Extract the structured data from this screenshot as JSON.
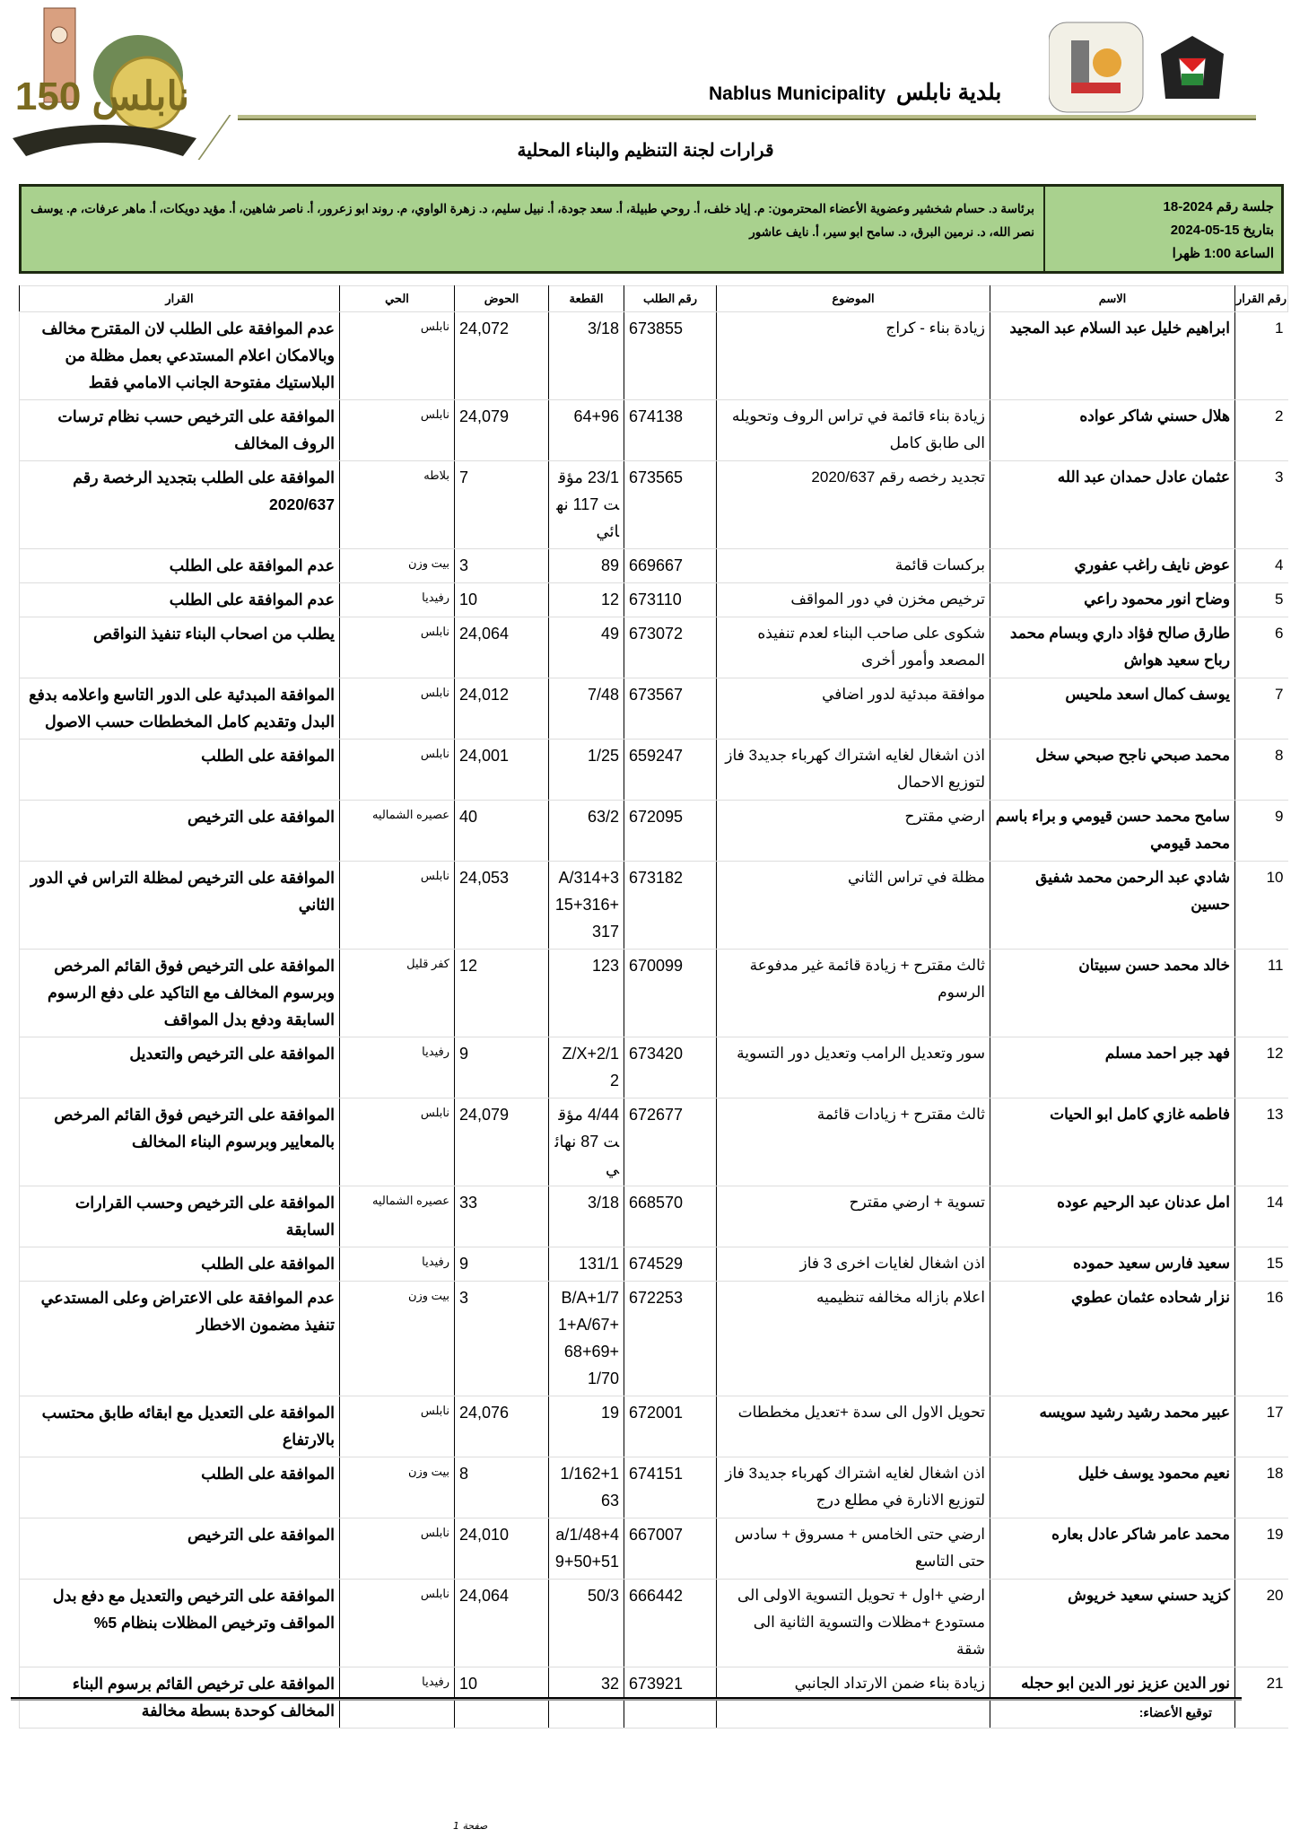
{
  "header": {
    "brand_ar": "بلدية نابلس",
    "brand_en": "Nablus Municipality",
    "left_logo_text": "150 نابلس",
    "title": "قرارات لجنة التنظيم والبناء المحلية"
  },
  "session": {
    "number": "جلسة رقم 2024-18",
    "date": "بتاريخ 15-05-2024",
    "time": "الساعة 1:00 ظهرا",
    "members": "برئاسة د. حسام شخشير وعضوية الأعضاء المحترمون: م. إياد خلف، أ. روحي طبيلة، أ. سعد جودة، أ. نبيل سليم، د. زهرة الواوي، م. روند ابو زعرور، أ. ناصر شاهين، أ. مؤيد دويكات، أ. ماهر عرفات، م. يوسف نصر الله، د. نرمين البرق، د. سامح ابو سير، أ. نايف عاشور"
  },
  "table": {
    "headers": [
      "رقم القرار",
      "الاسم",
      "الموضوع",
      "رقم الطلب",
      "القطعة",
      "الحوض",
      "الحي",
      "القرار"
    ],
    "rows": [
      [
        "1",
        "ابراهيم خليل عبد السلام عبد المجيد",
        "زيادة بناء - كراج",
        "673855",
        "3/18",
        "24,072",
        "نابلس",
        "عدم الموافقة على الطلب لان المقترح مخالف وبالامكان اعلام المستدعي بعمل مظلة من البلاستيك مفتوحة الجانب الامامي فقط"
      ],
      [
        "2",
        "هلال حسني شاكر عواده",
        "زيادة بناء قائمة في تراس الروف وتحويله الى طابق كامل",
        "674138",
        "64+96",
        "24,079",
        "نابلس",
        "الموافقة على الترخيص حسب نظام ترسات الروف المخالف"
      ],
      [
        "3",
        "عثمان عادل حمدان عبد الله",
        "تجديد رخصه رقم 2020/637",
        "673565",
        "23/1 مؤقت 117 نهائي",
        "7",
        "بلاطه",
        "الموافقة على الطلب بتجديد الرخصة رقم 2020/637"
      ],
      [
        "4",
        "عوض نايف راغب عفوري",
        "بركسات قائمة",
        "669667",
        "89",
        "3",
        "بيت وزن",
        "عدم الموافقة على الطلب"
      ],
      [
        "5",
        "وضاح انور محمود راعي",
        "ترخيص مخزن في دور المواقف",
        "673110",
        "12",
        "10",
        "رفيديا",
        "عدم الموافقة على الطلب"
      ],
      [
        "6",
        "طارق صالح فؤاد داري وبسام محمد رباح سعيد هواش",
        "شكوى على صاحب البناء لعدم تنفيذه المصعد وأمور أخرى",
        "673072",
        "49",
        "24,064",
        "نابلس",
        "يطلب من اصحاب البناء تنفيذ النواقص"
      ],
      [
        "7",
        "يوسف كمال اسعد ملحيس",
        "موافقة مبدئية لدور اضافي",
        "673567",
        "7/48",
        "24,012",
        "نابلس",
        "الموافقة المبدئية على الدور التاسع واعلامه بدفع البدل وتقديم كامل المخططات حسب الاصول"
      ],
      [
        "8",
        "محمد صبحي ناجح صبحي سخل",
        "اذن اشغال لغايه اشتراك كهرباء جديد3 فاز لتوزيع الاحمال",
        "659247",
        "1/25",
        "24,001",
        "نابلس",
        "الموافقة على الطلب"
      ],
      [
        "9",
        "سامح محمد حسن قيومي و براء باسم محمد قيومي",
        "ارضي مقترح",
        "672095",
        "63/2",
        "40",
        "عصيره الشماليه",
        "الموافقة على الترخيص"
      ],
      [
        "10",
        "شادي عبد الرحمن محمد شفيق حسين",
        "مظلة في تراس الثاني",
        "673182",
        "A/314+315+316+317",
        "24,053",
        "نابلس",
        "الموافقة على الترخيص لمظلة التراس في الدور الثاني"
      ],
      [
        "11",
        "خالد محمد حسن سبيتان",
        "ثالث مقترح + زيادة قائمة غير مدفوعة الرسوم",
        "670099",
        "123",
        "12",
        "كفر قليل",
        "الموافقة على الترخيص فوق القائم المرخص وبرسوم المخالف مع التاكيد على دفع الرسوم السابقة ودفع بدل المواقف"
      ],
      [
        "12",
        "فهد جبر احمد مسلم",
        "سور وتعديل الرامب وتعديل دور التسوية",
        "673420",
        "Z/X+2/12",
        "9",
        "رفيديا",
        "الموافقة على الترخيص والتعديل"
      ],
      [
        "13",
        "فاطمه غازي كامل ابو الحيات",
        "ثالث مقترح + زيادات قائمة",
        "672677",
        "4/44 مؤقت 87 نهائي",
        "24,079",
        "نابلس",
        "الموافقة على الترخيص فوق القائم المرخص بالمعايير وبرسوم البناء المخالف"
      ],
      [
        "14",
        "امل عدنان عبد الرحيم عوده",
        "تسوية + ارضي مقترح",
        "668570",
        "3/18",
        "33",
        "عصيره الشماليه",
        "الموافقة على الترخيص وحسب القرارات السابقة"
      ],
      [
        "15",
        "سعيد فارس سعيد حموده",
        "اذن اشغال لغايات اخرى 3 فاز",
        "674529",
        "131/1",
        "9",
        "رفيديا",
        "الموافقة على الطلب"
      ],
      [
        "16",
        "نزار شحاده عثمان عطوي",
        "اعلام بازاله مخالفه تنظيميه",
        "672253",
        "B/A+1/71+A/67+68+69+1/70",
        "3",
        "بيت وزن",
        "عدم الموافقة على الاعتراض وعلى المستدعي تنفيذ مضمون الاخطار"
      ],
      [
        "17",
        "عبير محمد رشيد رشيد سويسه",
        "تحويل الاول الى سدة +تعديل مخططات",
        "672001",
        "19",
        "24,076",
        "نابلس",
        "الموافقة على التعديل مع ابقائه طابق محتسب بالارتفاع"
      ],
      [
        "18",
        "نعيم محمود يوسف خليل",
        "اذن اشغال لغايه اشتراك كهرباء جديد3 فاز لتوزيع الانارة في مطلع درج",
        "674151",
        "1/162+163",
        "8",
        "بيت وزن",
        "الموافقة على الطلب"
      ],
      [
        "19",
        "محمد عامر شاكر عادل بعاره",
        "ارضي حتى الخامس + مسروق + سادس حتى التاسع",
        "667007",
        "a/1/48+49+50+51",
        "24,010",
        "نابلس",
        "الموافقة على الترخيص"
      ],
      [
        "20",
        "كزيد حسني سعيد خريوش",
        "ارضي +اول + تحويل التسوية الاولى الى مستودع +مظلات والتسوية الثانية الى شقة",
        "666442",
        "50/3",
        "24,064",
        "نابلس",
        "الموافقة على الترخيص والتعديل مع دفع بدل المواقف وترخيص المظلات بنظام 5%"
      ],
      [
        "21",
        "نور الدين عزيز نور الدين ابو حجله",
        "زيادة بناء ضمن الارتداد الجانبي",
        "673921",
        "32",
        "10",
        "رفيديا",
        "الموافقة على ترخيص القائم برسوم البناء المخالف كوحدة بسطة مخالفة"
      ]
    ]
  },
  "footer": {
    "signature_label": "توقيع الأعضاء:",
    "page_label": "صفحة 1"
  },
  "colors": {
    "session_fill": "#a9d18e",
    "session_border": "#1e2a12"
  }
}
